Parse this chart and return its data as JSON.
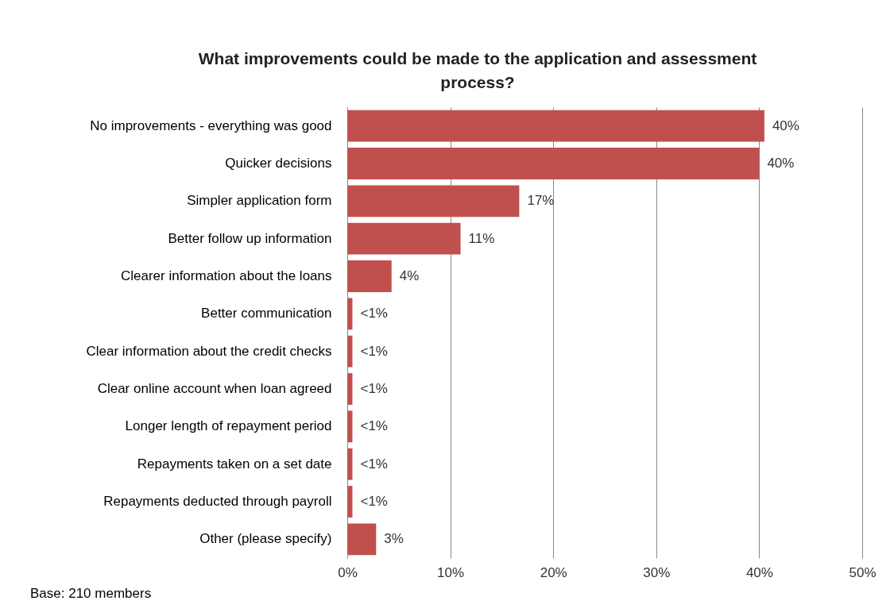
{
  "chart_data": {
    "type": "bar",
    "orientation": "horizontal",
    "title": "What improvements could be made to the application and assessment process?",
    "categories": [
      "No improvements - everything was good",
      "Quicker decisions",
      "Simpler application form",
      "Better follow up information",
      "Clearer information about the loans",
      "Better communication",
      "Clear information about the credit checks",
      "Clear online account when loan agreed",
      "Longer length of repayment period",
      "Repayments taken on a set date",
      "Repayments deducted through payroll",
      "Other (please specify)"
    ],
    "values": [
      40.5,
      40,
      16.7,
      11,
      4.3,
      0.5,
      0.5,
      0.5,
      0.5,
      0.5,
      0.5,
      2.8
    ],
    "value_labels": [
      "40%",
      "40%",
      "17%",
      "11%",
      "4%",
      "<1%",
      "<1%",
      "<1%",
      "<1%",
      "<1%",
      "<1%",
      "3%"
    ],
    "color": "#c0504d",
    "xlim": [
      0,
      50
    ],
    "xticks": [
      {
        "value": 0,
        "label": "0%"
      },
      {
        "value": 10,
        "label": "10%"
      },
      {
        "value": 20,
        "label": "20%"
      },
      {
        "value": 30,
        "label": "30%"
      },
      {
        "value": 40,
        "label": "40%"
      },
      {
        "value": 50,
        "label": "50%"
      }
    ],
    "grid": "x",
    "annotations": [
      "Base: 210 members"
    ]
  }
}
